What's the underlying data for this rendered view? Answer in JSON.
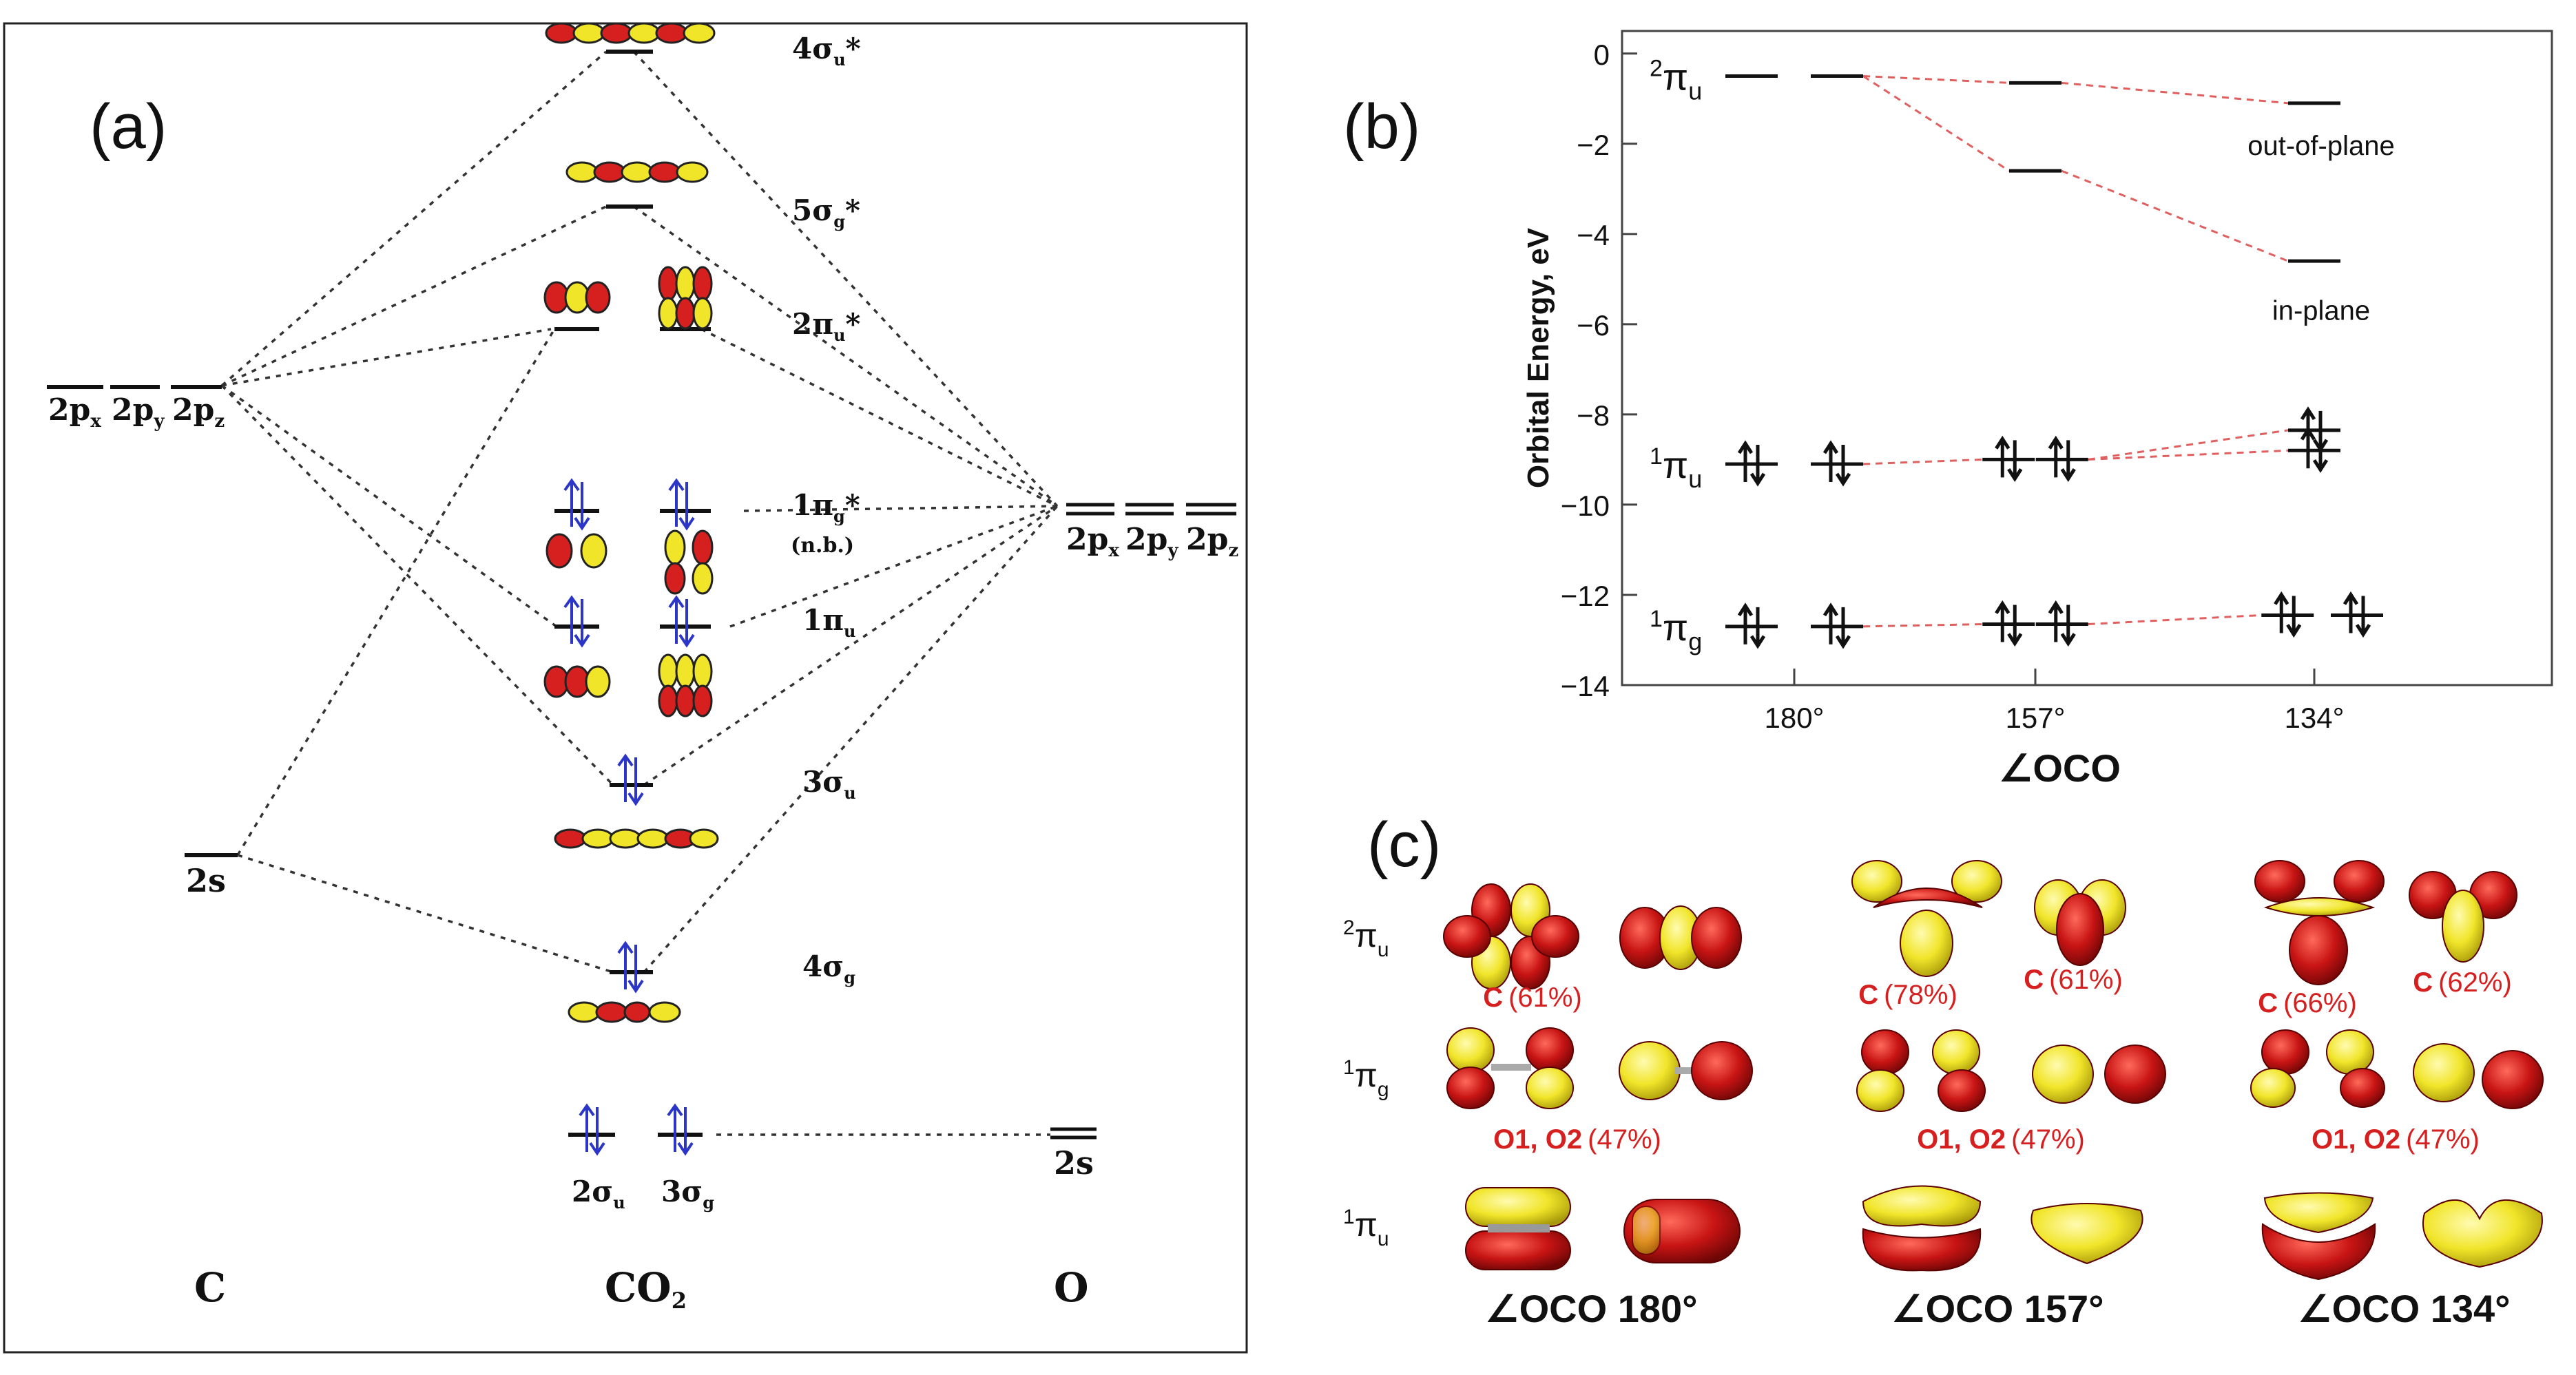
{
  "colors": {
    "accent_red": "#d62020",
    "accent_yellow": "#f1e52a",
    "electron_blue": "#2b36c8",
    "connector_red": "#e06060",
    "ink": "#111111"
  },
  "panel_a": {
    "label": "(a)",
    "columns": {
      "left": "C",
      "center": "CO",
      "center_sub": "2",
      "right": "O"
    },
    "c_levels": {
      "p": [
        {
          "base": "2p",
          "sub": "x"
        },
        {
          "base": "2p",
          "sub": "y"
        },
        {
          "base": "2p",
          "sub": "z"
        }
      ],
      "s": "2s"
    },
    "o_levels": {
      "p": [
        {
          "base": "2p",
          "sub": "x"
        },
        {
          "base": "2p",
          "sub": "y"
        },
        {
          "base": "2p",
          "sub": "z"
        }
      ],
      "s": "2s"
    },
    "mo_labels": {
      "s4u_star": {
        "base": "4σ",
        "sub": "u",
        "sup": "*"
      },
      "s5g_star": {
        "base": "5σ",
        "sub": "g",
        "sup": "*"
      },
      "p2u_star": {
        "base": "2π",
        "sub": "u",
        "sup": "*"
      },
      "p1g_star": {
        "base": "1π",
        "sub": "g",
        "sup": "*"
      },
      "nb": "(n.b.)",
      "p1u": {
        "base": "1π",
        "sub": "u"
      },
      "s3u": {
        "base": "3σ",
        "sub": "u"
      },
      "s4g": {
        "base": "4σ",
        "sub": "g"
      },
      "s2u": {
        "base": "2σ",
        "sub": "u"
      },
      "s3g": {
        "base": "3σ",
        "sub": "g"
      }
    }
  },
  "panel_b": {
    "label": "(b)",
    "chart_data": {
      "type": "line",
      "title": "",
      "xlabel": "∠OCO",
      "ylabel": "Orbital Energy, eV",
      "categories": [
        "180°",
        "157°",
        "134°"
      ],
      "ylim": [
        -14,
        0.5
      ],
      "yticks": [
        0,
        -2,
        -4,
        -6,
        -8,
        -10,
        -12,
        -14
      ],
      "ytick_labels": [
        "0",
        "−2",
        "−4",
        "−6",
        "−8",
        "−10",
        "−12",
        "−14"
      ],
      "series": [
        {
          "name": "2πu out-of-plane",
          "values": [
            -0.5,
            -0.65,
            -1.1
          ],
          "occupied": false
        },
        {
          "name": "2πu in-plane",
          "values": [
            -0.5,
            -2.6,
            -4.6
          ],
          "occupied": false
        },
        {
          "name": "1πu a",
          "values": [
            -9.1,
            -9.0,
            -8.35
          ],
          "occupied": true
        },
        {
          "name": "1πu b",
          "values": [
            -9.1,
            -9.0,
            -8.8
          ],
          "occupied": true
        },
        {
          "name": "1πg",
          "values": [
            -12.7,
            -12.65,
            -12.45
          ],
          "occupied": true
        }
      ],
      "level_labels": [
        {
          "base": "2π",
          "sub": "u",
          "at": -0.5
        },
        {
          "base": "1π",
          "sub": "u",
          "at": -9.1
        },
        {
          "base": "1π",
          "sub": "g",
          "at": -12.7
        }
      ],
      "annotations": [
        "out-of-plane",
        "in-plane"
      ]
    }
  },
  "panel_c": {
    "label": "(c)",
    "rows": [
      {
        "sup": "2",
        "base": "π",
        "sub": "u"
      },
      {
        "sup": "1",
        "base": "π",
        "sub": "g"
      },
      {
        "sup": "1",
        "base": "π",
        "sub": "u"
      }
    ],
    "contrib_row1": [
      {
        "atom": "C",
        "pct": "(61%)"
      },
      {
        "atom": "C",
        "pct": "(78%)"
      },
      {
        "atom": "C",
        "pct": "(61%)"
      },
      {
        "atom": "C",
        "pct": "(66%)"
      },
      {
        "atom": "C",
        "pct": "(62%)"
      }
    ],
    "contrib_row2": [
      {
        "atom": "O1, O2",
        "pct": "(47%)"
      },
      {
        "atom": "O1, O2",
        "pct": "(47%)"
      },
      {
        "atom": "O1, O2",
        "pct": "(47%)"
      }
    ],
    "angles": [
      "∠OCO 180°",
      "∠OCO 157°",
      "∠OCO 134°"
    ]
  }
}
